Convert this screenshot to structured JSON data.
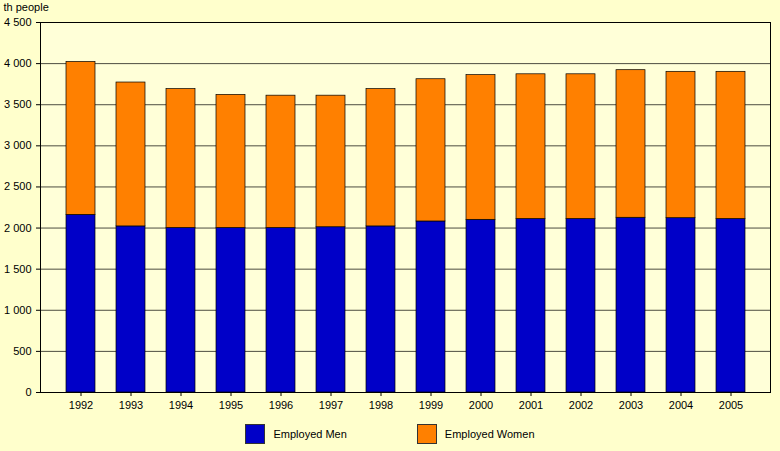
{
  "chart_data": {
    "type": "bar",
    "stacked": true,
    "ylabel": "th people",
    "categories": [
      "1992",
      "1993",
      "1994",
      "1995",
      "1996",
      "1997",
      "1998",
      "1999",
      "2000",
      "2001",
      "2002",
      "2003",
      "2004",
      "2005"
    ],
    "series": [
      {
        "name": "Employed Men",
        "color": "#0000C8",
        "values": [
          2160,
          2020,
          2000,
          2000,
          2000,
          2010,
          2020,
          2080,
          2100,
          2110,
          2110,
          2125,
          2120,
          2110
        ]
      },
      {
        "name": "Employed Women",
        "color": "#FF8000",
        "values": [
          1860,
          1750,
          1690,
          1620,
          1610,
          1600,
          1670,
          1730,
          1760,
          1760,
          1760,
          1795,
          1780,
          1790
        ]
      }
    ],
    "ylim": [
      0,
      4500
    ],
    "yticks": [
      0,
      500,
      {
        "value": 1000,
        "label": "1 000"
      },
      {
        "value": 1500,
        "label": "1 500"
      },
      {
        "value": 2000,
        "label": "2 000"
      },
      {
        "value": 2500,
        "label": "2 500"
      },
      {
        "value": 3000,
        "label": "3 000"
      },
      {
        "value": 3500,
        "label": "3 500"
      },
      {
        "value": 4000,
        "label": "4 000"
      },
      {
        "value": 4500,
        "label": "4 500"
      }
    ],
    "grid": true,
    "legend": "bottom"
  }
}
